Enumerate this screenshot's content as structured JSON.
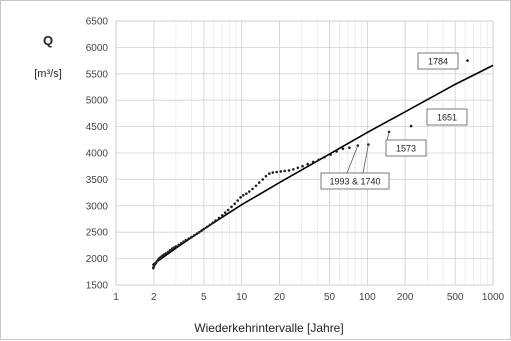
{
  "chart_data": {
    "type": "scatter",
    "ylabel": "Q",
    "ylabel_unit": "[m³/s]",
    "xlabel": "Wiederkehrintervalle [Jahre]",
    "x_scale": "log",
    "xlim": [
      1,
      1000
    ],
    "ylim": [
      1500,
      6500
    ],
    "x_ticks": [
      1,
      2,
      5,
      10,
      20,
      50,
      100,
      200,
      500,
      1000
    ],
    "x_tick_labels": [
      "1",
      "2",
      "5",
      "10",
      "20",
      "50",
      "100",
      "200",
      "500",
      "1000"
    ],
    "y_ticks": [
      1500,
      2000,
      2500,
      3000,
      3500,
      4000,
      4500,
      5000,
      5500,
      6000,
      6500
    ],
    "y_tick_labels": [
      "1500",
      "2000",
      "2500",
      "3000",
      "3500",
      "4000",
      "4500",
      "5000",
      "5500",
      "6000",
      "6500"
    ],
    "grid": true,
    "series": [
      {
        "kind": "line",
        "color": "#000000",
        "points": [
          [
            1.95,
            1880
          ],
          [
            3,
            2200
          ],
          [
            5,
            2560
          ],
          [
            10,
            3020
          ],
          [
            20,
            3440
          ],
          [
            50,
            3980
          ],
          [
            100,
            4390
          ],
          [
            200,
            4780
          ],
          [
            500,
            5300
          ],
          [
            1000,
            5660
          ]
        ]
      },
      {
        "kind": "points",
        "color": "#222222",
        "points": [
          [
            1.98,
            1820
          ],
          [
            2.0,
            1850
          ],
          [
            2.02,
            1880
          ],
          [
            2.05,
            1900
          ],
          [
            2.08,
            1920
          ],
          [
            2.12,
            1950
          ],
          [
            2.16,
            1975
          ],
          [
            2.2,
            2000
          ],
          [
            2.25,
            2020
          ],
          [
            2.3,
            2040
          ],
          [
            2.36,
            2060
          ],
          [
            2.42,
            2080
          ],
          [
            2.5,
            2100
          ],
          [
            2.6,
            2130
          ],
          [
            2.7,
            2160
          ],
          [
            2.8,
            2190
          ],
          [
            2.9,
            2210
          ],
          [
            3.0,
            2230
          ],
          [
            3.15,
            2260
          ],
          [
            3.3,
            2290
          ],
          [
            3.45,
            2320
          ],
          [
            3.6,
            2350
          ],
          [
            3.8,
            2380
          ],
          [
            4.0,
            2410
          ],
          [
            4.2,
            2440
          ],
          [
            4.4,
            2470
          ],
          [
            4.6,
            2500
          ],
          [
            4.8,
            2530
          ],
          [
            5.0,
            2560
          ],
          [
            5.3,
            2600
          ],
          [
            5.6,
            2640
          ],
          [
            5.9,
            2680
          ],
          [
            6.2,
            2720
          ],
          [
            6.6,
            2770
          ],
          [
            7.0,
            2820
          ],
          [
            7.4,
            2870
          ],
          [
            7.8,
            2920
          ],
          [
            8.3,
            2980
          ],
          [
            8.8,
            3040
          ],
          [
            9.3,
            3100
          ],
          [
            9.8,
            3160
          ],
          [
            10.3,
            3200
          ],
          [
            10.9,
            3230
          ],
          [
            11.5,
            3270
          ],
          [
            12.2,
            3320
          ],
          [
            13.0,
            3380
          ],
          [
            13.8,
            3440
          ],
          [
            14.7,
            3500
          ],
          [
            15.6,
            3560
          ],
          [
            16.6,
            3610
          ],
          [
            17.7,
            3630
          ],
          [
            19.0,
            3640
          ],
          [
            20.5,
            3650
          ],
          [
            22.0,
            3660
          ],
          [
            23.8,
            3670
          ],
          [
            25.8,
            3690
          ],
          [
            28.0,
            3720
          ],
          [
            30.5,
            3750
          ],
          [
            33.5,
            3790
          ],
          [
            37.0,
            3830
          ],
          [
            41.0,
            3870
          ],
          [
            45.5,
            3920
          ],
          [
            51.0,
            3970
          ],
          [
            57.0,
            4030
          ],
          [
            64.0,
            4080
          ],
          [
            72.0,
            4100
          ],
          [
            84.0,
            4140
          ],
          [
            102.0,
            4160
          ],
          [
            149.0,
            4400
          ],
          [
            223.0,
            4510
          ],
          [
            627.0,
            5750
          ]
        ]
      }
    ],
    "annotations": [
      {
        "text": "1784",
        "x": 627,
        "y": 5750
      },
      {
        "text": "1651",
        "x": 223,
        "y": 4510
      },
      {
        "text": "1573",
        "x": 149,
        "y": 4400
      },
      {
        "text": "1993 & 1740",
        "x": 102,
        "y": 4160
      }
    ]
  }
}
